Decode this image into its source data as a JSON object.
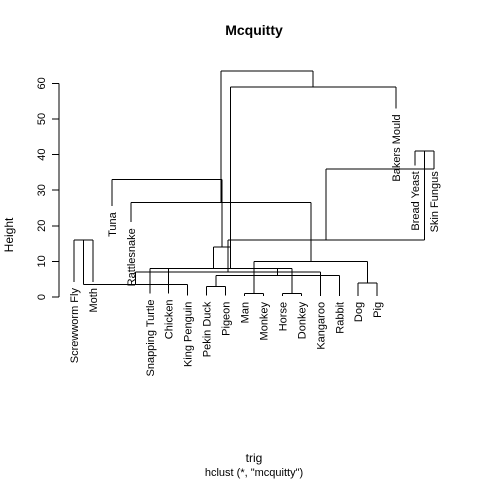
{
  "chart_data": {
    "type": "dendrogram",
    "title": "Mcquitty",
    "ylabel": "Height",
    "xlabel": "trig",
    "subtitle": "hclust (*, \"mcquitty\")",
    "ylim": [
      0,
      67
    ],
    "yticks": [
      0,
      10,
      20,
      30,
      40,
      50,
      60
    ],
    "leaves": [
      {
        "label": "Screwworm Fly",
        "height": 4.2
      },
      {
        "label": "Moth",
        "height": 4.2
      },
      {
        "label": "Tuna",
        "height": 25.5
      },
      {
        "label": "Rattlesnake",
        "height": 21.0
      },
      {
        "label": "Snapping Turtle",
        "height": 1.0
      },
      {
        "label": "Chicken",
        "height": 1.0
      },
      {
        "label": "King Penguin",
        "height": 0.4
      },
      {
        "label": "Pekin Duck",
        "height": 0.4
      },
      {
        "label": "Pigeon",
        "height": 0.4
      },
      {
        "label": "Man",
        "height": 0.3
      },
      {
        "label": "Monkey",
        "height": 0.3
      },
      {
        "label": "Horse",
        "height": 0.3
      },
      {
        "label": "Donkey",
        "height": 0.3
      },
      {
        "label": "Kangaroo",
        "height": 0.3
      },
      {
        "label": "Rabbit",
        "height": 0.3
      },
      {
        "label": "Dog",
        "height": 0.3
      },
      {
        "label": "Pig",
        "height": 0.3
      },
      {
        "label": "Bakers Mould",
        "height": 53.0
      },
      {
        "label": "Bread Yeast",
        "height": 37.0
      },
      {
        "label": "Skin Fungus",
        "height": 37.0
      }
    ],
    "merges": [
      [
        0,
        1,
        16.0
      ],
      [
        9,
        10,
        1.0
      ],
      [
        11,
        12,
        1.0
      ],
      [
        7,
        8,
        3.0
      ],
      [
        6,
        20,
        3.5
      ],
      [
        15,
        16,
        4.0
      ],
      [
        14,
        23,
        6.0
      ],
      [
        13,
        24,
        7.0
      ],
      [
        5,
        22,
        8.0
      ],
      [
        4,
        26,
        8.0
      ],
      [
        18,
        19,
        41.0
      ],
      [
        21,
        25,
        10.0
      ],
      [
        28,
        29,
        14.0
      ],
      [
        27,
        30,
        16.0
      ],
      [
        3,
        31,
        26.5
      ],
      [
        2,
        32,
        33.0
      ],
      [
        17,
        28,
        59.0
      ],
      [
        19,
        33,
        36.0
      ],
      [
        34,
        36,
        63.5
      ]
    ]
  }
}
